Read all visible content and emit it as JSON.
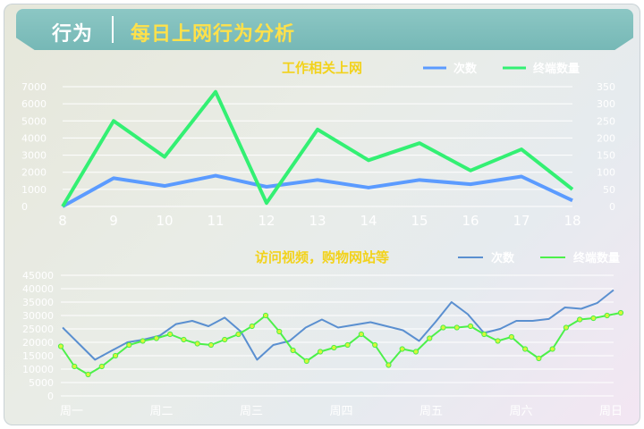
{
  "header": {
    "title": "行为",
    "subtitle": "每日上网行为分析"
  },
  "chart_data": [
    {
      "type": "line",
      "title": "工作相关上网",
      "x": [
        "8",
        "9",
        "10",
        "11",
        "12",
        "13",
        "14",
        "15",
        "16",
        "17",
        "18"
      ],
      "y_left": [
        0,
        1000,
        2000,
        3000,
        4000,
        5000,
        6000,
        7000
      ],
      "y_right": [
        0,
        50,
        100,
        150,
        200,
        250,
        300,
        350
      ],
      "ylim_left": [
        0,
        7000
      ],
      "ylim_right": [
        0,
        350
      ],
      "grid": true,
      "legend": "top-right",
      "series": [
        {
          "name": "次数",
          "axis": "left",
          "color": "#5b9bff",
          "values": [
            0,
            1650,
            1200,
            1800,
            1150,
            1550,
            1100,
            1550,
            1300,
            1750,
            350
          ]
        },
        {
          "name": "终端数量",
          "axis": "right",
          "color": "#33f073",
          "values": [
            0,
            250,
            145,
            335,
            10,
            225,
            135,
            185,
            105,
            167,
            50
          ]
        }
      ]
    },
    {
      "type": "line",
      "title": "访问视频，购物网站等",
      "x_labels": [
        "周一",
        "周二",
        "周三",
        "周四",
        "周五",
        "周六",
        "周日"
      ],
      "y": [
        0,
        5000,
        10000,
        15000,
        20000,
        25000,
        30000,
        35000,
        40000,
        45000
      ],
      "ylim": [
        0,
        45000
      ],
      "grid": true,
      "legend": "top-right",
      "series": [
        {
          "name": "次数",
          "color": "#5a8fd0",
          "values": [
            25500,
            19500,
            13500,
            16800,
            20000,
            21000,
            22500,
            26800,
            28000,
            26000,
            29200,
            24000,
            13500,
            19000,
            20500,
            25500,
            28500,
            25500,
            26500,
            27500,
            26000,
            24500,
            20500,
            27500,
            35000,
            30500,
            23500,
            25000,
            28000,
            28000,
            28700,
            33000,
            32500,
            34700,
            39500
          ]
        },
        {
          "name": "终端数量",
          "color": "#4cf04a",
          "values": [
            18500,
            11000,
            8000,
            11000,
            15000,
            19000,
            20500,
            21500,
            23000,
            21000,
            19500,
            19000,
            21000,
            23000,
            26000,
            30000,
            24000,
            17000,
            13000,
            16500,
            18000,
            19000,
            23000,
            19000,
            11500,
            17500,
            16500,
            21500,
            25500,
            25500,
            26000,
            23000,
            20500,
            22000,
            17500,
            14000,
            17500,
            25500,
            28500,
            29000,
            30000,
            31000
          ]
        }
      ]
    }
  ]
}
